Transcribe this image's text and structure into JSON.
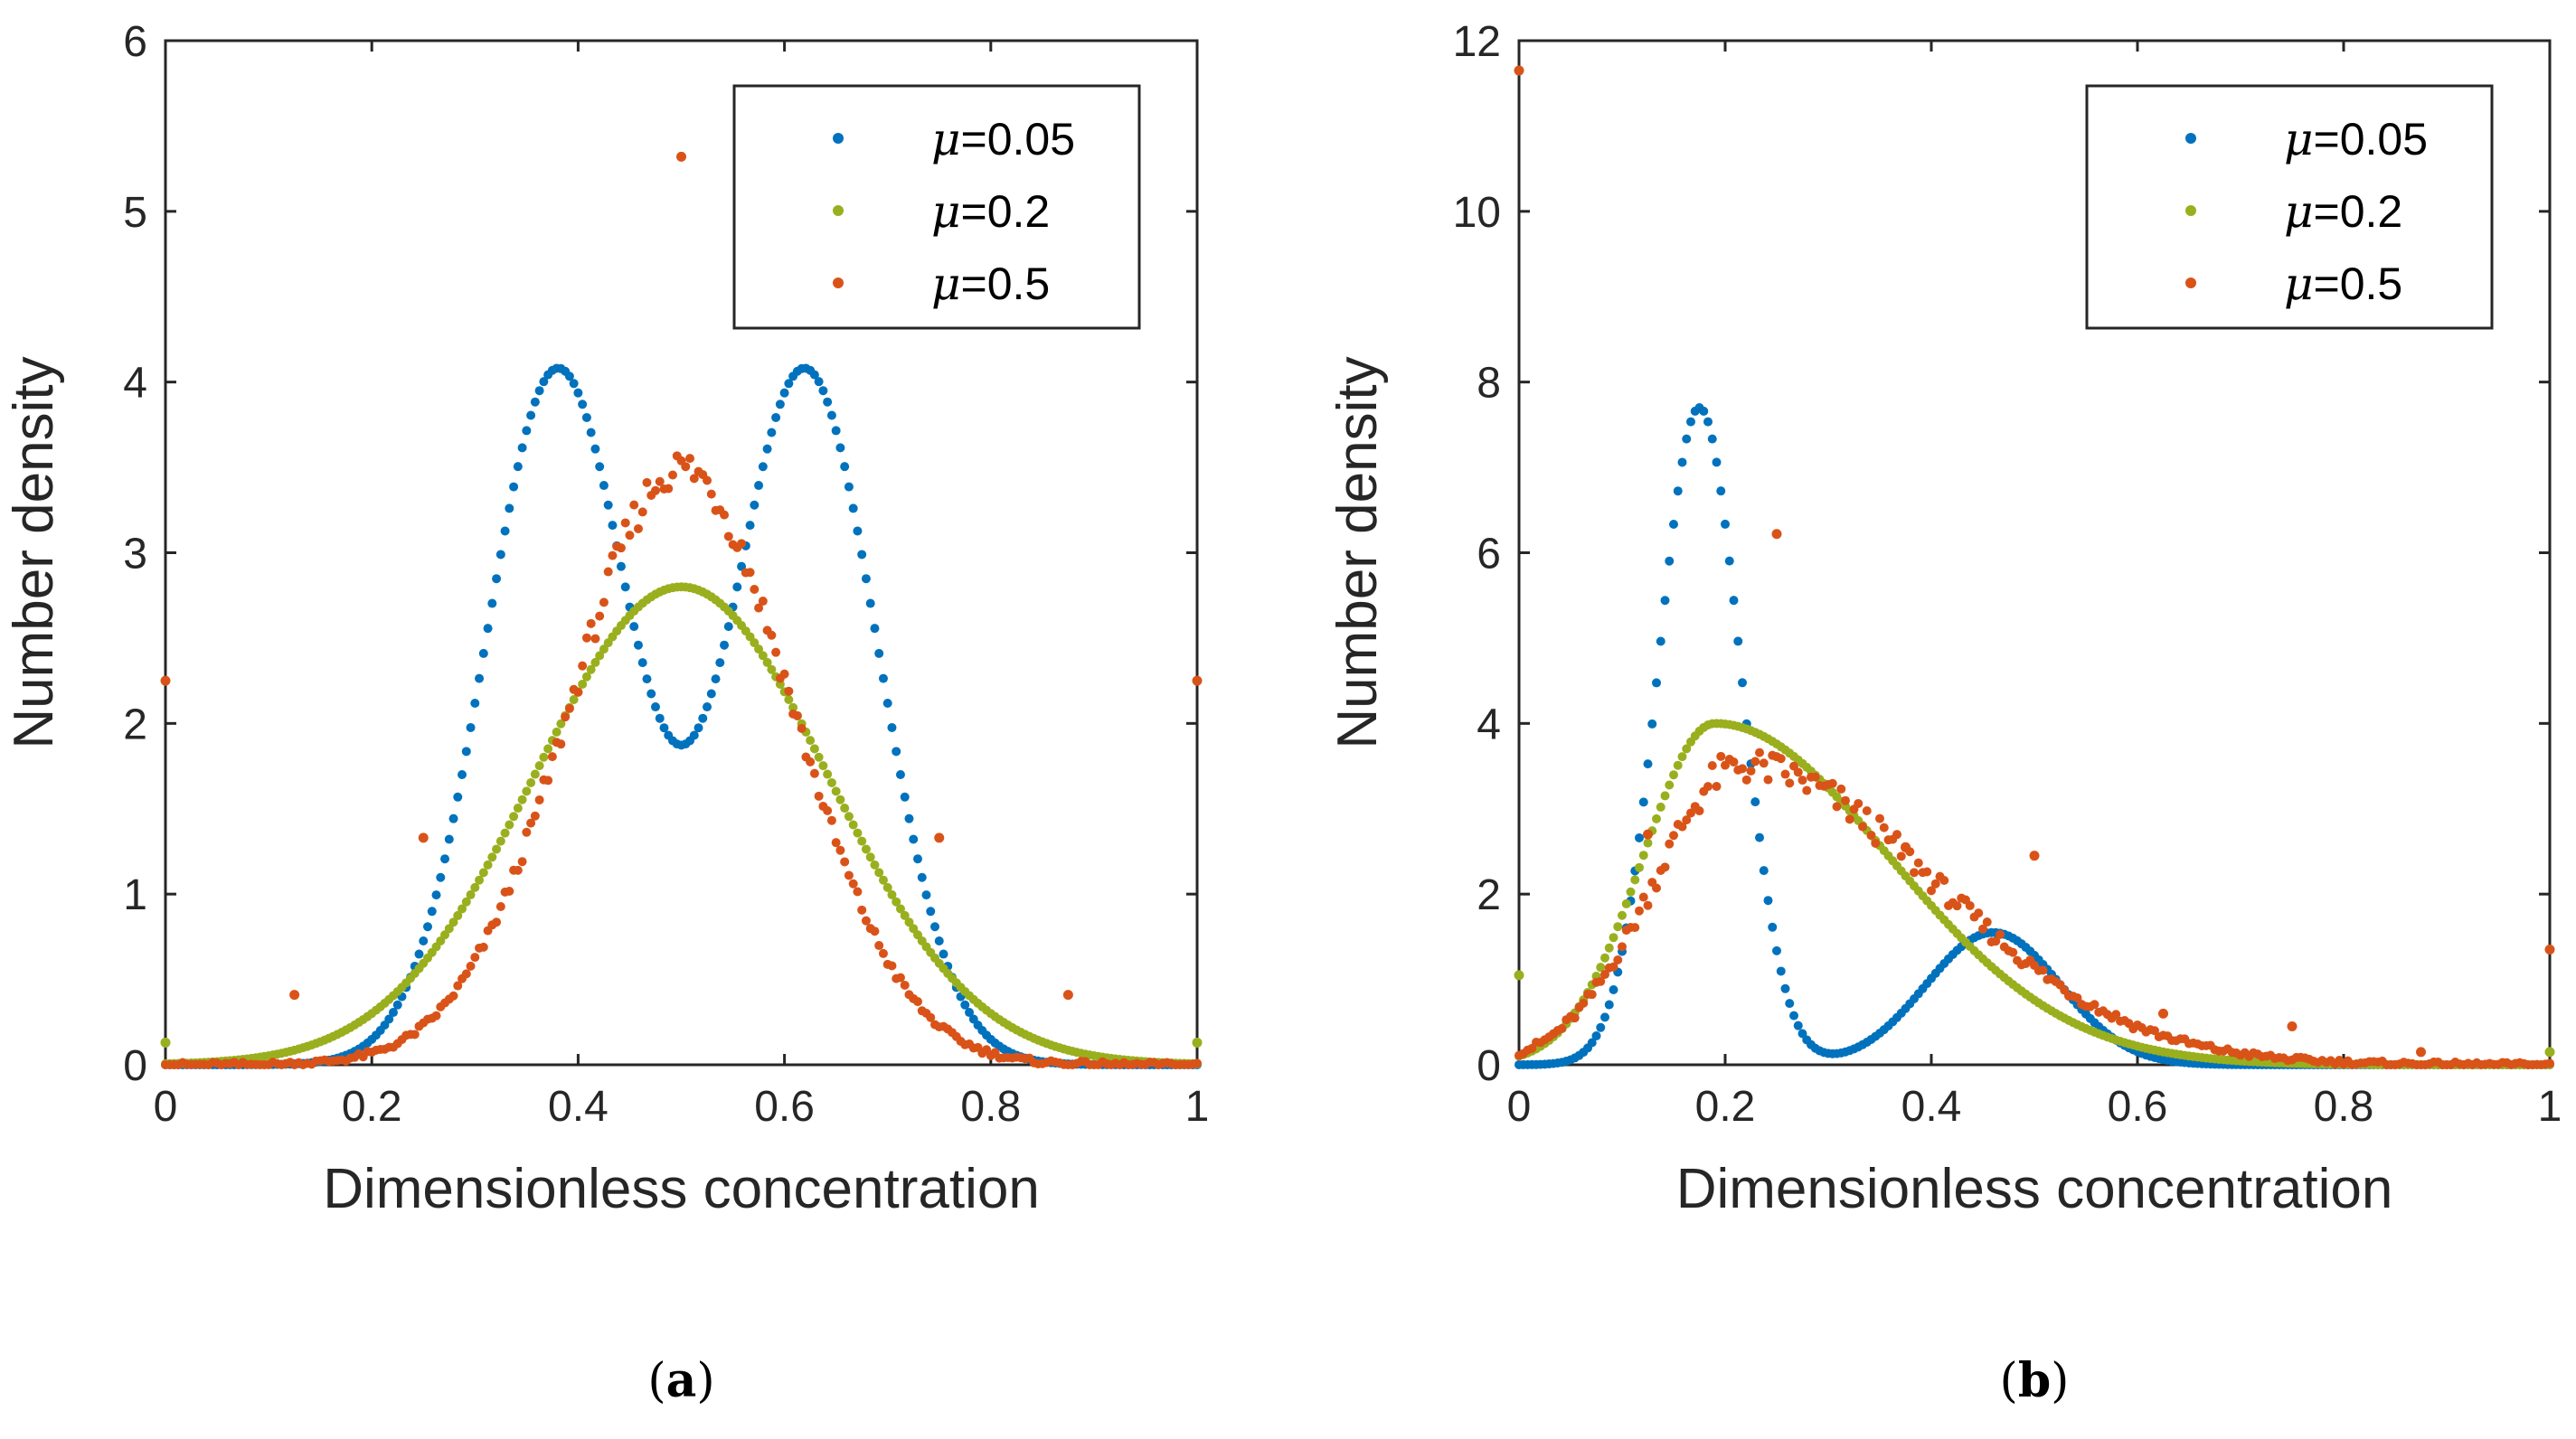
{
  "chart_data": [
    {
      "type": "scatter",
      "panel": "a",
      "caption": {
        "open": "(",
        "letter": "a",
        "close": ")"
      },
      "xlabel": "Dimensionless concentration",
      "ylabel": "Number density",
      "xlim": [
        0,
        1
      ],
      "ylim": [
        0,
        6
      ],
      "xticks": [
        0,
        0.2,
        0.4,
        0.6,
        0.8,
        1
      ],
      "xtick_labels": [
        "0",
        "0.2",
        "0.4",
        "0.6",
        "0.8",
        "1"
      ],
      "yticks": [
        0,
        1,
        2,
        3,
        4,
        5,
        6
      ],
      "ytick_labels": [
        "0",
        "1",
        "2",
        "3",
        "4",
        "5",
        "6"
      ],
      "legend_position": "top-right",
      "series": [
        {
          "name": "μ=0.05",
          "legend_symbol": "μ",
          "legend_value": "=0.05",
          "color": "#0072BD",
          "model": {
            "kind": "gauss_sum",
            "components": [
              {
                "amp": 4.07,
                "mu": 0.38,
                "sigma": 0.07
              },
              {
                "amp": 4.07,
                "mu": 0.62,
                "sigma": 0.07
              }
            ]
          },
          "outliers": []
        },
        {
          "name": "μ=0.2",
          "legend_symbol": "μ",
          "legend_value": "=0.2",
          "color": "#9AAF1E",
          "model": {
            "kind": "gauss_sum",
            "components": [
              {
                "amp": 2.8,
                "mu": 0.5,
                "sigma": 0.142
              }
            ]
          },
          "outliers": [
            {
              "x": 0,
              "y": 0.13
            },
            {
              "x": 1,
              "y": 0.13
            }
          ]
        },
        {
          "name": "μ=0.5",
          "legend_symbol": "μ",
          "legend_value": "=0.5",
          "color": "#D95319",
          "model": {
            "kind": "gauss_sum",
            "components": [
              {
                "amp": 3.5,
                "mu": 0.5,
                "sigma": 0.107
              }
            ]
          },
          "noise": 0.05,
          "outliers": [
            {
              "x": 0,
              "y": 2.25
            },
            {
              "x": 1,
              "y": 2.25
            },
            {
              "x": 0.5,
              "y": 5.32
            },
            {
              "x": 0.125,
              "y": 0.41
            },
            {
              "x": 0.875,
              "y": 0.41
            },
            {
              "x": 0.25,
              "y": 1.33
            },
            {
              "x": 0.75,
              "y": 1.33
            }
          ]
        }
      ]
    },
    {
      "type": "scatter",
      "panel": "b",
      "caption": {
        "open": "(",
        "letter": "b",
        "close": ")"
      },
      "xlabel": "Dimensionless concentration",
      "ylabel": "Number density",
      "xlim": [
        0,
        1
      ],
      "ylim": [
        0,
        12
      ],
      "xticks": [
        0,
        0.2,
        0.4,
        0.6,
        0.8,
        1
      ],
      "xtick_labels": [
        "0",
        "0.2",
        "0.4",
        "0.6",
        "0.8",
        "1"
      ],
      "yticks": [
        0,
        2,
        4,
        6,
        8,
        10,
        12
      ],
      "ytick_labels": [
        "0",
        "2",
        "4",
        "6",
        "8",
        "10",
        "12"
      ],
      "legend_position": "top-right",
      "series": [
        {
          "name": "μ=0.05",
          "legend_symbol": "μ",
          "legend_value": "=0.05",
          "color": "#0072BD",
          "model": {
            "kind": "gauss_sum",
            "components": [
              {
                "amp": 7.7,
                "mu": 0.175,
                "sigma": 0.04
              },
              {
                "amp": 1.55,
                "mu": 0.46,
                "sigma": 0.065
              }
            ]
          },
          "outliers": []
        },
        {
          "name": "μ=0.2",
          "legend_symbol": "μ",
          "legend_value": "=0.2",
          "color": "#9AAF1E",
          "model": {
            "kind": "skew",
            "peak_x": 0.19,
            "peak_y": 4.0,
            "left_sigma": 0.07,
            "right_sigma": 0.17
          },
          "outliers": [
            {
              "x": 0,
              "y": 1.05
            },
            {
              "x": 1,
              "y": 0.15
            }
          ]
        },
        {
          "name": "μ=0.5",
          "legend_symbol": "μ",
          "legend_value": "=0.5",
          "color": "#D95319",
          "model": {
            "kind": "skew",
            "peak_x": 0.215,
            "peak_y": 3.5,
            "left_sigma": 0.085,
            "right_sigma": 0.19
          },
          "noise": 0.09,
          "outliers": [
            {
              "x": 0,
              "y": 11.65
            },
            {
              "x": 1,
              "y": 1.35
            },
            {
              "x": 0.25,
              "y": 6.22
            },
            {
              "x": 0.125,
              "y": 2.7
            },
            {
              "x": 0.375,
              "y": 2.55
            },
            {
              "x": 0.5,
              "y": 2.45
            },
            {
              "x": 0.625,
              "y": 0.6
            },
            {
              "x": 0.75,
              "y": 0.45
            },
            {
              "x": 0.875,
              "y": 0.15
            }
          ]
        }
      ]
    }
  ]
}
